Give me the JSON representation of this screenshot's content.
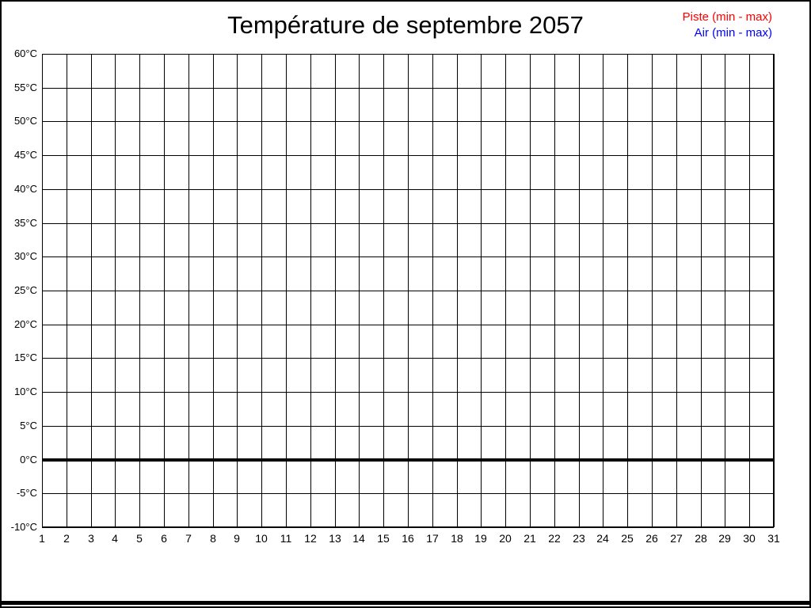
{
  "title": "Température de septembre 2057",
  "legend": {
    "position": "top-right",
    "items": [
      {
        "label": "Piste (min - max)",
        "color": "#ff0000"
      },
      {
        "label": "Air (min - max)",
        "color": "#0000ff"
      }
    ]
  },
  "chart_data": {
    "type": "line",
    "title": "Température de septembre 2057",
    "xlabel": "",
    "ylabel": "",
    "x_unit": "day of month",
    "xlim": [
      1,
      31
    ],
    "ylim": [
      -10,
      60
    ],
    "x_ticks": [
      1,
      2,
      3,
      4,
      5,
      6,
      7,
      8,
      9,
      10,
      11,
      12,
      13,
      14,
      15,
      16,
      17,
      18,
      19,
      20,
      21,
      22,
      23,
      24,
      25,
      26,
      27,
      28,
      29,
      30,
      31
    ],
    "y_tick_step": 5,
    "y_ticks": [
      {
        "value": 60,
        "label": "60°C"
      },
      {
        "value": 55,
        "label": "55°C"
      },
      {
        "value": 50,
        "label": "50°C"
      },
      {
        "value": 45,
        "label": "45°C"
      },
      {
        "value": 40,
        "label": "40°C"
      },
      {
        "value": 35,
        "label": "35°C"
      },
      {
        "value": 30,
        "label": "30°C"
      },
      {
        "value": 25,
        "label": "25°C"
      },
      {
        "value": 20,
        "label": "20°C"
      },
      {
        "value": 15,
        "label": "15°C"
      },
      {
        "value": 10,
        "label": "10°C"
      },
      {
        "value": 5,
        "label": "5°C"
      },
      {
        "value": 0,
        "label": "0°C"
      },
      {
        "value": -5,
        "label": "-5°C"
      },
      {
        "value": -10,
        "label": "-10°C"
      }
    ],
    "grid": true,
    "zero_line": {
      "value": 0,
      "thick": true,
      "color": "#000000"
    },
    "legend_position": "top-right",
    "series": [
      {
        "name": "Piste (min - max)",
        "color": "#ff0000",
        "points": []
      },
      {
        "name": "Air (min - max)",
        "color": "#0000ff",
        "points": []
      }
    ]
  },
  "colors": {
    "background": "#ffffff",
    "frame": "#000000",
    "grid": "#000000",
    "text": "#000000"
  }
}
